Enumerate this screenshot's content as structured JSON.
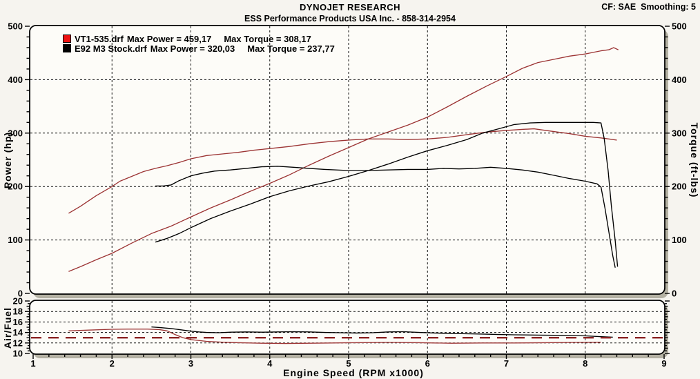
{
  "header": {
    "brand": "DYNOJET RESEARCH",
    "subtitle": "ESS Performance Products USA Inc. - 858-314-2954",
    "correction": "CF: SAE  Smoothing: 5"
  },
  "legend": [
    {
      "file": "VT1-535.drf",
      "max_power": "Max Power = 459,17",
      "max_torque": "Max Torque = 308,17",
      "color": "#ee1111"
    },
    {
      "file": "E92 M3 Stock.drf",
      "max_power": "Max Power = 320,03",
      "max_torque": "Max Torque = 237,77",
      "color": "#000000"
    }
  ],
  "chart_data": [
    {
      "type": "line",
      "title": "",
      "xlabel": "",
      "ylabel": "Power (hp)",
      "y2label": "Torque (ft-lbs)",
      "xlim": [
        1,
        9
      ],
      "ylim": [
        0,
        500
      ],
      "xticks": [
        1,
        2,
        3,
        4,
        5,
        6,
        7,
        8,
        9
      ],
      "yticks": [
        0,
        100,
        200,
        300,
        400,
        500
      ],
      "y_minor_step": 20,
      "x_minor_step": 0.2,
      "grid_x": [
        2,
        3,
        4,
        5,
        6,
        7,
        8
      ],
      "grid_y": [
        100,
        200,
        300,
        400
      ],
      "grid": "dashed",
      "legend_position": "top-left",
      "series": [
        {
          "name": "VT1-535 Power (hp)",
          "color": "#9c3434",
          "points": [
            [
              1.45,
              41
            ],
            [
              1.6,
              50
            ],
            [
              1.8,
              63
            ],
            [
              2.0,
              75
            ],
            [
              2.25,
              94
            ],
            [
              2.5,
              112
            ],
            [
              2.75,
              126
            ],
            [
              3.0,
              143
            ],
            [
              3.25,
              160
            ],
            [
              3.5,
              175
            ],
            [
              3.75,
              191
            ],
            [
              4.0,
              206
            ],
            [
              4.25,
              222
            ],
            [
              4.5,
              240
            ],
            [
              4.75,
              257
            ],
            [
              5.0,
              273
            ],
            [
              5.25,
              289
            ],
            [
              5.5,
              302
            ],
            [
              5.75,
              315
            ],
            [
              6.0,
              330
            ],
            [
              6.25,
              349
            ],
            [
              6.5,
              369
            ],
            [
              6.75,
              388
            ],
            [
              7.0,
              406
            ],
            [
              7.2,
              421
            ],
            [
              7.4,
              432
            ],
            [
              7.6,
              438
            ],
            [
              7.8,
              444
            ],
            [
              8.0,
              448
            ],
            [
              8.1,
              451
            ],
            [
              8.2,
              454
            ],
            [
              8.3,
              456
            ],
            [
              8.36,
              460
            ],
            [
              8.42,
              456
            ]
          ]
        },
        {
          "name": "VT1-535 Torque (ft-lbs)",
          "color": "#9c3434",
          "points": [
            [
              1.45,
              150
            ],
            [
              1.6,
              163
            ],
            [
              1.8,
              183
            ],
            [
              2.0,
              200
            ],
            [
              2.1,
              210
            ],
            [
              2.25,
              219
            ],
            [
              2.4,
              228
            ],
            [
              2.55,
              234
            ],
            [
              2.7,
              239
            ],
            [
              2.85,
              245
            ],
            [
              3.0,
              252
            ],
            [
              3.2,
              258
            ],
            [
              3.4,
              261
            ],
            [
              3.6,
              264
            ],
            [
              3.8,
              268
            ],
            [
              4.0,
              271
            ],
            [
              4.25,
              275
            ],
            [
              4.5,
              280
            ],
            [
              4.75,
              284
            ],
            [
              5.0,
              287
            ],
            [
              5.25,
              289
            ],
            [
              5.5,
              289
            ],
            [
              5.75,
              288
            ],
            [
              6.0,
              289
            ],
            [
              6.25,
              292
            ],
            [
              6.5,
              297
            ],
            [
              6.75,
              302
            ],
            [
              7.0,
              305
            ],
            [
              7.2,
              307
            ],
            [
              7.35,
              308
            ],
            [
              7.5,
              305
            ],
            [
              7.65,
              302
            ],
            [
              7.8,
              299
            ],
            [
              8.0,
              294
            ],
            [
              8.2,
              291
            ],
            [
              8.3,
              289
            ],
            [
              8.4,
              287
            ]
          ]
        },
        {
          "name": "E92 M3 Stock Power (hp)",
          "color": "#000000",
          "points": [
            [
              2.55,
              96
            ],
            [
              2.7,
              103
            ],
            [
              2.85,
              112
            ],
            [
              3.0,
              123
            ],
            [
              3.25,
              140
            ],
            [
              3.5,
              154
            ],
            [
              3.75,
              167
            ],
            [
              4.0,
              181
            ],
            [
              4.25,
              192
            ],
            [
              4.5,
              201
            ],
            [
              4.75,
              209
            ],
            [
              5.0,
              219
            ],
            [
              5.25,
              230
            ],
            [
              5.5,
              242
            ],
            [
              5.75,
              255
            ],
            [
              6.0,
              267
            ],
            [
              6.25,
              277
            ],
            [
              6.5,
              288
            ],
            [
              6.7,
              300
            ],
            [
              6.9,
              308
            ],
            [
              7.1,
              316
            ],
            [
              7.3,
              319
            ],
            [
              7.5,
              320
            ],
            [
              7.7,
              320
            ],
            [
              7.9,
              320
            ],
            [
              8.1,
              320
            ],
            [
              8.2,
              319
            ],
            [
              8.24,
              290
            ],
            [
              8.29,
              230
            ],
            [
              8.33,
              165
            ],
            [
              8.38,
              98
            ],
            [
              8.41,
              50
            ]
          ]
        },
        {
          "name": "E92 M3 Stock Torque (ft-lbs)",
          "color": "#000000",
          "points": [
            [
              2.55,
              201
            ],
            [
              2.65,
              201
            ],
            [
              2.75,
              203
            ],
            [
              2.85,
              211
            ],
            [
              3.0,
              220
            ],
            [
              3.15,
              225
            ],
            [
              3.3,
              229
            ],
            [
              3.5,
              231
            ],
            [
              3.7,
              234
            ],
            [
              3.9,
              237
            ],
            [
              4.1,
              238
            ],
            [
              4.3,
              236
            ],
            [
              4.5,
              234
            ],
            [
              4.7,
              232
            ],
            [
              5.0,
              230
            ],
            [
              5.25,
              230
            ],
            [
              5.5,
              231
            ],
            [
              5.75,
              232
            ],
            [
              6.0,
              232
            ],
            [
              6.2,
              234
            ],
            [
              6.4,
              233
            ],
            [
              6.6,
              234
            ],
            [
              6.8,
              236
            ],
            [
              7.0,
              234
            ],
            [
              7.2,
              231
            ],
            [
              7.4,
              227
            ],
            [
              7.6,
              221
            ],
            [
              7.8,
              215
            ],
            [
              8.0,
              210
            ],
            [
              8.15,
              205
            ],
            [
              8.2,
              199
            ],
            [
              8.25,
              160
            ],
            [
              8.3,
              115
            ],
            [
              8.35,
              70
            ],
            [
              8.38,
              48
            ]
          ]
        }
      ]
    },
    {
      "type": "line",
      "title": "",
      "xlabel": "Engine Speed (RPM x1000)",
      "ylabel": "Air/Fuel",
      "xlim": [
        1,
        9
      ],
      "ylim": [
        10,
        20
      ],
      "xticks": [
        1,
        2,
        3,
        4,
        5,
        6,
        7,
        8,
        9
      ],
      "yticks": [
        10,
        12,
        14,
        16,
        18,
        20
      ],
      "y_minor_step": 0.5,
      "x_minor_step": 0.2,
      "grid_x": [
        2,
        3,
        4,
        5,
        6,
        7,
        8
      ],
      "grid_y": [
        12,
        14,
        16,
        18
      ],
      "grid": "dashed",
      "target_line": {
        "name": "A/F target",
        "value": 13,
        "color": "#8b2222",
        "style": "dashed"
      },
      "series": [
        {
          "name": "VT1-535 Air/Fuel",
          "color": "#9c3434",
          "points": [
            [
              1.45,
              14.3
            ],
            [
              1.7,
              14.45
            ],
            [
              2.0,
              14.6
            ],
            [
              2.2,
              14.65
            ],
            [
              2.45,
              14.65
            ],
            [
              2.6,
              14.55
            ],
            [
              2.7,
              14.3
            ],
            [
              2.8,
              13.6
            ],
            [
              2.9,
              13.0
            ],
            [
              3.0,
              12.65
            ],
            [
              3.2,
              12.3
            ],
            [
              3.4,
              12.15
            ],
            [
              3.6,
              12.05
            ],
            [
              3.9,
              11.95
            ],
            [
              4.2,
              11.9
            ],
            [
              4.5,
              11.95
            ],
            [
              4.8,
              12.0
            ],
            [
              5.1,
              12.05
            ],
            [
              5.5,
              12.1
            ],
            [
              5.9,
              12.05
            ],
            [
              6.3,
              11.95
            ],
            [
              6.7,
              12.0
            ],
            [
              7.1,
              12.0
            ],
            [
              7.5,
              12.05
            ],
            [
              7.9,
              12.1
            ],
            [
              8.2,
              12.15
            ]
          ]
        },
        {
          "name": "E92 M3 Stock Air/Fuel",
          "color": "#000000",
          "points": [
            [
              2.5,
              15.05
            ],
            [
              2.6,
              14.95
            ],
            [
              2.75,
              14.75
            ],
            [
              2.9,
              14.45
            ],
            [
              3.0,
              14.25
            ],
            [
              3.1,
              14.1
            ],
            [
              3.2,
              14.0
            ],
            [
              3.35,
              13.95
            ],
            [
              3.5,
              14.05
            ],
            [
              3.7,
              14.1
            ],
            [
              3.9,
              14.05
            ],
            [
              4.1,
              14.1
            ],
            [
              4.3,
              14.15
            ],
            [
              4.5,
              14.1
            ],
            [
              4.7,
              14.0
            ],
            [
              4.9,
              13.95
            ],
            [
              5.1,
              13.9
            ],
            [
              5.3,
              13.95
            ],
            [
              5.5,
              14.1
            ],
            [
              5.7,
              14.15
            ],
            [
              5.9,
              14.0
            ],
            [
              6.1,
              13.9
            ],
            [
              6.3,
              13.8
            ],
            [
              6.5,
              13.75
            ],
            [
              6.7,
              13.7
            ],
            [
              6.9,
              13.6
            ],
            [
              7.1,
              13.55
            ],
            [
              7.4,
              13.5
            ],
            [
              7.7,
              13.45
            ],
            [
              8.0,
              13.35
            ],
            [
              8.2,
              13.2
            ],
            [
              8.35,
              13.1
            ]
          ]
        }
      ]
    }
  ]
}
